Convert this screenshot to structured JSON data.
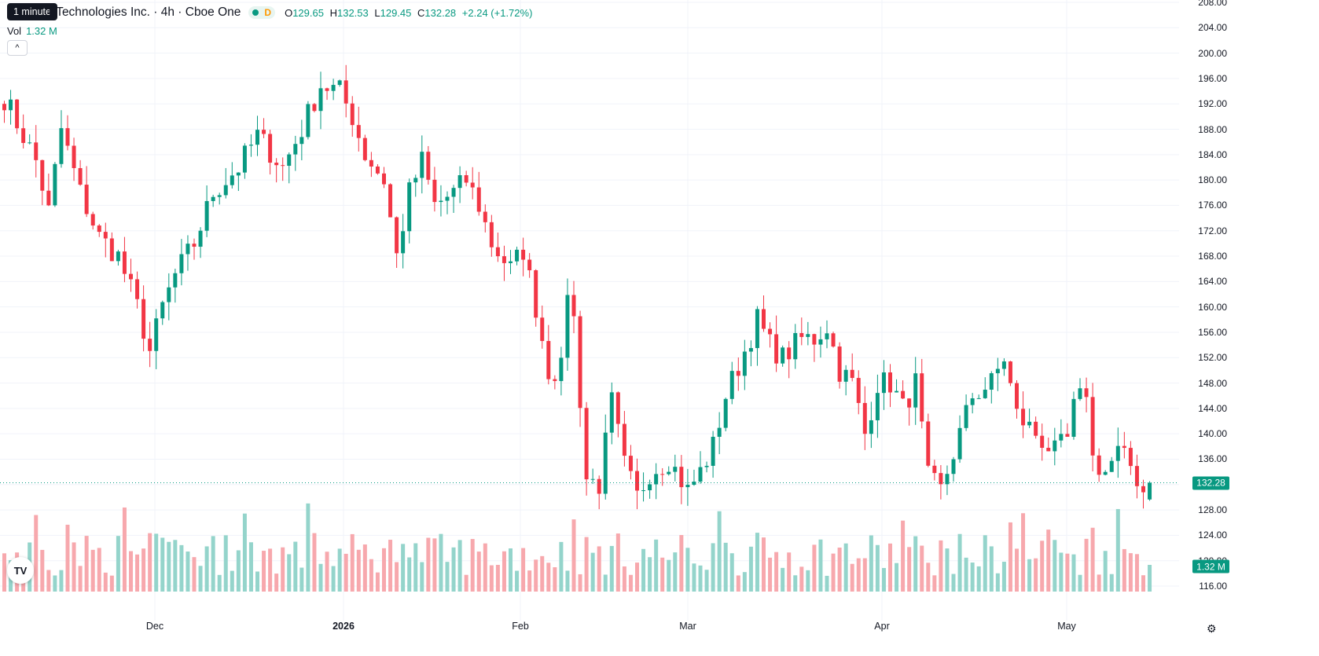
{
  "tooltip": "1 minute",
  "legend": {
    "title": "r Technologies Inc. · 4h · Cboe One",
    "d_badge": "D",
    "open_label": "O",
    "open": "129.65",
    "high_label": "H",
    "high": "132.53",
    "low_label": "L",
    "low": "129.45",
    "close_label": "C",
    "close": "132.28",
    "change": "+2.24 (+1.72%)"
  },
  "volume": {
    "label": "Vol",
    "value": "1.32 M"
  },
  "collapse_glyph": "^",
  "logo": "TV",
  "price_axis": [
    "208.00",
    "204.00",
    "200.00",
    "196.00",
    "192.00",
    "188.00",
    "184.00",
    "180.00",
    "176.00",
    "172.00",
    "168.00",
    "164.00",
    "160.00",
    "156.00",
    "152.00",
    "148.00",
    "144.00",
    "140.00",
    "136.00",
    "132.00",
    "128.00",
    "124.00",
    "120.00",
    "116.00"
  ],
  "last_price_tag": "132.28",
  "volume_tag": "1.32 M",
  "time_axis": [
    {
      "label": "Dec",
      "bold": false
    },
    {
      "label": "2026",
      "bold": true
    },
    {
      "label": "Feb",
      "bold": false
    },
    {
      "label": "Mar",
      "bold": false
    },
    {
      "label": "Apr",
      "bold": false
    },
    {
      "label": "May",
      "bold": false
    }
  ],
  "colors": {
    "up": "#089981",
    "down": "#f23645",
    "up_vol": "#94d4cb",
    "down_vol": "#f7a8ad"
  },
  "chart_data": {
    "type": "candlestick",
    "last_close": 132.28,
    "ylim": [
      116,
      208
    ],
    "waypoints": [
      [
        0,
        193
      ],
      [
        3,
        187
      ],
      [
        5,
        183
      ],
      [
        7,
        175
      ],
      [
        9,
        188
      ],
      [
        12,
        178
      ],
      [
        15,
        171
      ],
      [
        18,
        168
      ],
      [
        21,
        160
      ],
      [
        23,
        153
      ],
      [
        25,
        160
      ],
      [
        27,
        165
      ],
      [
        30,
        170
      ],
      [
        33,
        178
      ],
      [
        37,
        182
      ],
      [
        40,
        187
      ],
      [
        44,
        182
      ],
      [
        47,
        188
      ],
      [
        50,
        195
      ],
      [
        53,
        194
      ],
      [
        55,
        190
      ],
      [
        57,
        184
      ],
      [
        60,
        180
      ],
      [
        62,
        168
      ],
      [
        64,
        178
      ],
      [
        66,
        183
      ],
      [
        68,
        176
      ],
      [
        71,
        178
      ],
      [
        73,
        180
      ],
      [
        75,
        176
      ],
      [
        77,
        170
      ],
      [
        80,
        166
      ],
      [
        82,
        169
      ],
      [
        84,
        160
      ],
      [
        86,
        150
      ],
      [
        88,
        150
      ],
      [
        89,
        163
      ],
      [
        90,
        158
      ],
      [
        92,
        133
      ],
      [
        94,
        132
      ],
      [
        96,
        145
      ],
      [
        98,
        135
      ],
      [
        100,
        130
      ],
      [
        102,
        134
      ],
      [
        105,
        136
      ],
      [
        108,
        131
      ],
      [
        110,
        134
      ],
      [
        112,
        138
      ],
      [
        114,
        146
      ],
      [
        117,
        153
      ],
      [
        119,
        158
      ],
      [
        121,
        154
      ],
      [
        123,
        152
      ],
      [
        126,
        155
      ],
      [
        128,
        155
      ],
      [
        130,
        157
      ],
      [
        132,
        150
      ],
      [
        134,
        148
      ],
      [
        136,
        140
      ],
      [
        138,
        148
      ],
      [
        140,
        148
      ],
      [
        142,
        144
      ],
      [
        144,
        148
      ],
      [
        146,
        133
      ],
      [
        148,
        131
      ],
      [
        151,
        140
      ],
      [
        153,
        146
      ],
      [
        156,
        148
      ],
      [
        158,
        152
      ],
      [
        160,
        143
      ],
      [
        162,
        141
      ],
      [
        164,
        139
      ],
      [
        166,
        137
      ],
      [
        168,
        139
      ],
      [
        169,
        144
      ],
      [
        171,
        147
      ],
      [
        172,
        136
      ],
      [
        174,
        134
      ],
      [
        176,
        137
      ],
      [
        178,
        135
      ],
      [
        180,
        131
      ],
      [
        181,
        132.28
      ]
    ],
    "vol_range": [
      0,
      4.5
    ]
  }
}
